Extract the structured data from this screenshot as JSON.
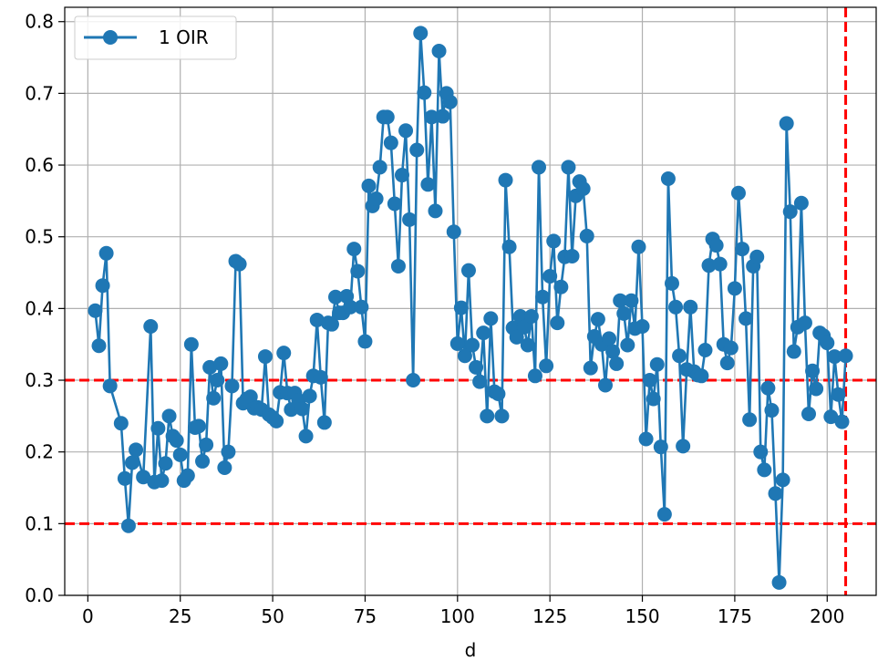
{
  "chart_data": {
    "type": "line",
    "title": "",
    "xlabel": "d",
    "ylabel": "",
    "xlim": [
      -6.25,
      213.25
    ],
    "ylim": [
      0.0,
      0.82
    ],
    "xticks": [
      0,
      25,
      50,
      75,
      100,
      125,
      150,
      175,
      200
    ],
    "xtick_labels": [
      "0",
      "25",
      "50",
      "75",
      "100",
      "125",
      "150",
      "175",
      "200"
    ],
    "yticks": [
      0.0,
      0.1,
      0.2,
      0.3,
      0.4,
      0.5,
      0.6,
      0.7,
      0.8
    ],
    "ytick_labels": [
      "0.0",
      "0.1",
      "0.2",
      "0.3",
      "0.4",
      "0.5",
      "0.6",
      "0.7",
      "0.8"
    ],
    "grid": true,
    "legend_position": "upper-left",
    "series": [
      {
        "name": "1 OIR",
        "color": "#1f77b4",
        "marker": "circle",
        "x": [
          2,
          3,
          4,
          5,
          6,
          9,
          10,
          11,
          12,
          13,
          15,
          17,
          18,
          19,
          20,
          21,
          22,
          23,
          24,
          25,
          26,
          27,
          28,
          29,
          30,
          31,
          32,
          33,
          34,
          35,
          36,
          37,
          38,
          39,
          40,
          41,
          42,
          43,
          44,
          45,
          46,
          47,
          48,
          49,
          50,
          51,
          52,
          53,
          54,
          55,
          56,
          57,
          58,
          59,
          60,
          61,
          62,
          63,
          64,
          65,
          66,
          67,
          68,
          69,
          70,
          71,
          72,
          73,
          74,
          75,
          76,
          77,
          78,
          79,
          80,
          81,
          82,
          83,
          84,
          85,
          86,
          87,
          88,
          89,
          90,
          91,
          92,
          93,
          94,
          95,
          96,
          97,
          98,
          99,
          100,
          101,
          102,
          103,
          104,
          105,
          106,
          107,
          108,
          109,
          110,
          111,
          112,
          113,
          114,
          115,
          116,
          117,
          118,
          119,
          120,
          121,
          122,
          123,
          124,
          125,
          126,
          127,
          128,
          129,
          130,
          131,
          132,
          133,
          134,
          135,
          136,
          137,
          138,
          139,
          140,
          141,
          142,
          143,
          144,
          145,
          146,
          147,
          148,
          149,
          150,
          151,
          152,
          153,
          154,
          155,
          156,
          157,
          158,
          159,
          160,
          161,
          162,
          163,
          164,
          165,
          166,
          167,
          168,
          169,
          170,
          171,
          172,
          173,
          174,
          175,
          176,
          177,
          178,
          179,
          180,
          181,
          182,
          183,
          184,
          185,
          186,
          187,
          188,
          189,
          190,
          191,
          192,
          193,
          194,
          195,
          196,
          197,
          198,
          199,
          200,
          201,
          202,
          203,
          204,
          205
        ],
        "y": [
          0.397,
          0.348,
          0.432,
          0.477,
          0.292,
          0.24,
          0.163,
          0.097,
          0.185,
          0.203,
          0.165,
          0.375,
          0.158,
          0.233,
          0.16,
          0.184,
          0.25,
          0.222,
          0.216,
          0.196,
          0.16,
          0.167,
          0.35,
          0.234,
          0.236,
          0.187,
          0.21,
          0.318,
          0.275,
          0.3,
          0.323,
          0.178,
          0.2,
          0.292,
          0.466,
          0.462,
          0.268,
          0.274,
          0.277,
          0.261,
          0.262,
          0.259,
          0.333,
          0.252,
          0.248,
          0.243,
          0.283,
          0.338,
          0.282,
          0.259,
          0.282,
          0.272,
          0.26,
          0.222,
          0.278,
          0.306,
          0.384,
          0.304,
          0.241,
          0.38,
          0.378,
          0.416,
          0.394,
          0.394,
          0.417,
          0.402,
          0.483,
          0.452,
          0.402,
          0.354,
          0.571,
          0.543,
          0.553,
          0.597,
          0.667,
          0.667,
          0.631,
          0.546,
          0.459,
          0.586,
          0.648,
          0.524,
          0.3,
          0.621,
          0.784,
          0.701,
          0.573,
          0.667,
          0.536,
          0.759,
          0.668,
          0.7,
          0.688,
          0.507,
          0.351,
          0.401,
          0.334,
          0.453,
          0.349,
          0.318,
          0.298,
          0.366,
          0.25,
          0.386,
          0.284,
          0.281,
          0.25,
          0.579,
          0.486,
          0.373,
          0.36,
          0.389,
          0.374,
          0.349,
          0.389,
          0.306,
          0.597,
          0.416,
          0.32,
          0.445,
          0.494,
          0.38,
          0.43,
          0.472,
          0.597,
          0.473,
          0.557,
          0.577,
          0.567,
          0.501,
          0.317,
          0.361,
          0.385,
          0.35,
          0.293,
          0.358,
          0.34,
          0.323,
          0.411,
          0.393,
          0.349,
          0.411,
          0.372,
          0.486,
          0.375,
          0.218,
          0.3,
          0.274,
          0.322,
          0.207,
          0.113,
          0.581,
          0.435,
          0.402,
          0.334,
          0.208,
          0.315,
          0.402,
          0.312,
          0.307,
          0.306,
          0.342,
          0.46,
          0.497,
          0.488,
          0.462,
          0.35,
          0.324,
          0.345,
          0.428,
          0.561,
          0.483,
          0.386,
          0.245,
          0.459,
          0.472,
          0.2,
          0.175,
          0.289,
          0.258,
          0.142,
          0.018,
          0.161,
          0.658,
          0.535,
          0.34,
          0.374,
          0.547,
          0.38,
          0.253,
          0.313,
          0.288,
          0.366,
          0.362,
          0.352,
          0.249,
          0.333,
          0.28,
          0.242,
          0.334
        ]
      }
    ],
    "reference_lines": [
      {
        "orientation": "horizontal",
        "value": 0.3,
        "color": "#ff0000",
        "style": "dashed"
      },
      {
        "orientation": "horizontal",
        "value": 0.1,
        "color": "#ff0000",
        "style": "dashed"
      },
      {
        "orientation": "vertical",
        "value": 205,
        "color": "#ff0000",
        "style": "dashed"
      }
    ]
  }
}
